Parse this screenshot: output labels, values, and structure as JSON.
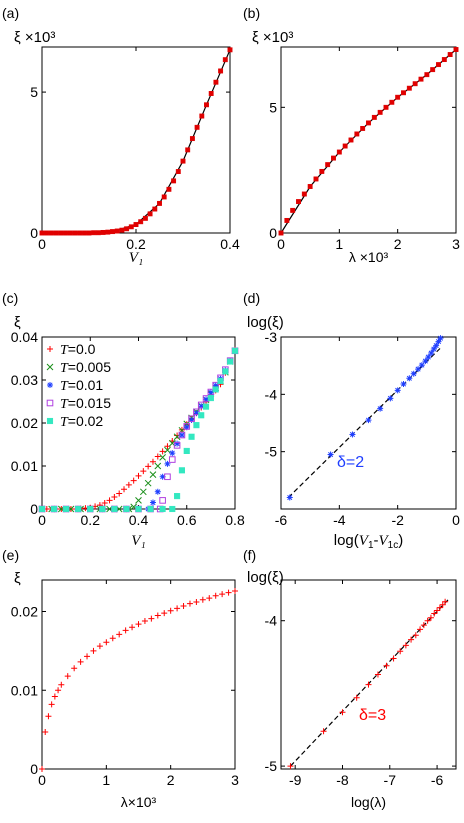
{
  "chart_data": [
    {
      "panel": "(a)",
      "type": "scatter",
      "ylabel": "ξ ×10³",
      "xlabel": "V₁",
      "xlim": [
        0,
        0.4
      ],
      "ylim": [
        0,
        6.6
      ],
      "xticks": [
        0,
        0.2,
        0.4
      ],
      "xtick_labels": [
        "0",
        "0.2",
        "0.4"
      ],
      "yticks": [
        0,
        5
      ],
      "ytick_labels": [
        "0",
        "5"
      ],
      "series": [
        {
          "marker": "square",
          "color": "#e00000",
          "x": [
            0,
            0.01,
            0.02,
            0.03,
            0.04,
            0.05,
            0.06,
            0.07,
            0.08,
            0.09,
            0.1,
            0.11,
            0.12,
            0.13,
            0.14,
            0.15,
            0.16,
            0.17,
            0.18,
            0.19,
            0.2,
            0.21,
            0.22,
            0.23,
            0.24,
            0.25,
            0.26,
            0.27,
            0.28,
            0.29,
            0.3,
            0.31,
            0.32,
            0.33,
            0.34,
            0.35,
            0.36,
            0.37,
            0.38,
            0.39,
            0.4
          ],
          "y": [
            0,
            0,
            0,
            0,
            0,
            0,
            0,
            0,
            0,
            0,
            0,
            0.01,
            0.01,
            0.02,
            0.03,
            0.05,
            0.07,
            0.1,
            0.15,
            0.22,
            0.3,
            0.4,
            0.52,
            0.68,
            0.85,
            1.05,
            1.28,
            1.55,
            1.85,
            2.18,
            2.55,
            2.95,
            3.35,
            3.75,
            4.15,
            4.55,
            4.95,
            5.35,
            5.75,
            6.15,
            6.5
          ]
        }
      ],
      "fit": {
        "style": "solid",
        "color": "#000000",
        "x": [
          0,
          0.1,
          0.15,
          0.2,
          0.25,
          0.3,
          0.35,
          0.4
        ],
        "y": [
          0,
          0,
          0.05,
          0.3,
          1.05,
          2.55,
          4.55,
          6.5
        ]
      }
    },
    {
      "panel": "(b)",
      "type": "scatter",
      "ylabel": "ξ ×10³",
      "xlabel": "λ ×10³",
      "xlim": [
        0,
        3
      ],
      "ylim": [
        0,
        7.4
      ],
      "xticks": [
        0,
        1,
        2,
        3
      ],
      "xtick_labels": [
        "0",
        "1",
        "2",
        "3"
      ],
      "yticks": [
        0,
        5
      ],
      "ytick_labels": [
        "0",
        "5"
      ],
      "series": [
        {
          "marker": "square",
          "color": "#e00000",
          "x": [
            0,
            0.1,
            0.2,
            0.3,
            0.4,
            0.5,
            0.6,
            0.7,
            0.8,
            0.9,
            1.0,
            1.1,
            1.2,
            1.3,
            1.4,
            1.5,
            1.6,
            1.7,
            1.8,
            1.9,
            2.0,
            2.1,
            2.2,
            2.3,
            2.4,
            2.5,
            2.6,
            2.7,
            2.8,
            2.9,
            3.0
          ],
          "y": [
            0,
            0.5,
            0.9,
            1.25,
            1.55,
            1.85,
            2.15,
            2.45,
            2.72,
            2.98,
            3.22,
            3.46,
            3.7,
            3.94,
            4.16,
            4.38,
            4.6,
            4.8,
            5.0,
            5.2,
            5.4,
            5.58,
            5.76,
            5.94,
            6.12,
            6.3,
            6.5,
            6.7,
            6.9,
            7.1,
            7.3
          ]
        }
      ],
      "fit": {
        "style": "solid",
        "color": "#000000",
        "x": [
          0,
          0.5,
          1.0,
          1.5,
          2.0,
          2.5,
          3.0
        ],
        "y": [
          0,
          1.85,
          3.22,
          4.38,
          5.4,
          6.3,
          7.3
        ]
      }
    },
    {
      "panel": "(c)",
      "type": "scatter",
      "ylabel": "ξ",
      "xlabel": "V₁",
      "xlim": [
        0,
        0.8
      ],
      "ylim": [
        0,
        0.04
      ],
      "xticks": [
        0,
        0.2,
        0.4,
        0.6,
        0.8
      ],
      "xtick_labels": [
        "0",
        "0.2",
        "0.4",
        "0.6",
        "0.8"
      ],
      "yticks": [
        0,
        0.01,
        0.02,
        0.03,
        0.04
      ],
      "ytick_labels": [
        "0",
        "0.01",
        "0.02",
        "0.03",
        "0.04"
      ],
      "legend": "top-left",
      "series": [
        {
          "name": "T=0.0",
          "legend_var": "T",
          "legend_val": "=0.0",
          "marker": "plus",
          "color": "#ff0000",
          "x": [
            0,
            0.02,
            0.04,
            0.06,
            0.08,
            0.1,
            0.12,
            0.14,
            0.16,
            0.18,
            0.2,
            0.22,
            0.24,
            0.26,
            0.28,
            0.3,
            0.32,
            0.34,
            0.36,
            0.38,
            0.4,
            0.42,
            0.44,
            0.46,
            0.48,
            0.5,
            0.52,
            0.54,
            0.56,
            0.58,
            0.6,
            0.62,
            0.64,
            0.66,
            0.68,
            0.7,
            0.72,
            0.74,
            0.76,
            0.78,
            0.8
          ],
          "y": [
            0,
            0,
            0,
            0,
            0,
            0,
            0,
            0,
            0.0001,
            0.0002,
            0.0003,
            0.0006,
            0.0009,
            0.0014,
            0.002,
            0.0028,
            0.0036,
            0.0046,
            0.0056,
            0.0066,
            0.0077,
            0.0088,
            0.0099,
            0.011,
            0.0122,
            0.0134,
            0.0146,
            0.0158,
            0.0171,
            0.0184,
            0.0197,
            0.021,
            0.0223,
            0.0236,
            0.0249,
            0.0262,
            0.0276,
            0.029,
            0.0317,
            0.0345,
            0.037
          ]
        },
        {
          "name": "T=0.005",
          "legend_var": "T",
          "legend_val": "=0.005",
          "marker": "x",
          "color": "#1a8f1a",
          "x": [
            0,
            0.04,
            0.08,
            0.12,
            0.16,
            0.2,
            0.24,
            0.28,
            0.32,
            0.36,
            0.38,
            0.4,
            0.42,
            0.44,
            0.46,
            0.48,
            0.5,
            0.52,
            0.54,
            0.56,
            0.58,
            0.6,
            0.62,
            0.64,
            0.66,
            0.68,
            0.7,
            0.72,
            0.74,
            0.76,
            0.78,
            0.8
          ],
          "y": [
            0,
            0,
            0,
            0,
            0,
            0,
            0,
            0,
            0,
            0,
            0.0005,
            0.002,
            0.004,
            0.006,
            0.008,
            0.01,
            0.012,
            0.0137,
            0.0153,
            0.0168,
            0.0183,
            0.0198,
            0.0212,
            0.0226,
            0.024,
            0.0254,
            0.0268,
            0.0282,
            0.0297,
            0.0318,
            0.0343,
            0.0368
          ]
        },
        {
          "name": "T=0.01",
          "legend_var": "T",
          "legend_val": "=0.01",
          "marker": "asterisk",
          "color": "#1f3fff",
          "x": [
            0,
            0.05,
            0.1,
            0.15,
            0.2,
            0.25,
            0.3,
            0.35,
            0.4,
            0.44,
            0.46,
            0.48,
            0.5,
            0.52,
            0.54,
            0.56,
            0.58,
            0.6,
            0.62,
            0.64,
            0.66,
            0.68,
            0.7,
            0.72,
            0.74,
            0.76,
            0.78,
            0.8
          ],
          "y": [
            0,
            0,
            0,
            0,
            0,
            0,
            0,
            0,
            0,
            0,
            0.0015,
            0.004,
            0.0075,
            0.0105,
            0.013,
            0.0152,
            0.0172,
            0.019,
            0.0207,
            0.0223,
            0.0239,
            0.0255,
            0.0271,
            0.0287,
            0.0303,
            0.0322,
            0.0344,
            0.0368
          ]
        },
        {
          "name": "T=0.015",
          "legend_var": "T",
          "legend_val": "=0.015",
          "marker": "square-open",
          "color": "#b040e0",
          "x": [
            0,
            0.05,
            0.1,
            0.15,
            0.2,
            0.25,
            0.3,
            0.35,
            0.4,
            0.45,
            0.49,
            0.5,
            0.52,
            0.54,
            0.56,
            0.58,
            0.6,
            0.62,
            0.64,
            0.66,
            0.68,
            0.7,
            0.72,
            0.74,
            0.76,
            0.78,
            0.8
          ],
          "y": [
            0,
            0,
            0,
            0,
            0,
            0,
            0,
            0,
            0,
            0,
            0,
            0.002,
            0.0075,
            0.0115,
            0.0148,
            0.0172,
            0.0192,
            0.021,
            0.0226,
            0.0242,
            0.0257,
            0.0272,
            0.0288,
            0.0305,
            0.0324,
            0.0345,
            0.0368
          ]
        },
        {
          "name": "T=0.02",
          "legend_var": "T",
          "legend_val": "=0.02",
          "marker": "square-filled",
          "color": "#33e8c0",
          "x": [
            0,
            0.05,
            0.1,
            0.15,
            0.2,
            0.25,
            0.3,
            0.35,
            0.4,
            0.45,
            0.5,
            0.54,
            0.56,
            0.58,
            0.6,
            0.62,
            0.64,
            0.66,
            0.68,
            0.7,
            0.72,
            0.74,
            0.76,
            0.78,
            0.8
          ],
          "y": [
            0,
            0,
            0,
            0,
            0,
            0,
            0,
            0,
            0,
            0,
            0,
            0,
            0.003,
            0.009,
            0.0135,
            0.0168,
            0.0195,
            0.0218,
            0.0238,
            0.0258,
            0.0278,
            0.0298,
            0.032,
            0.0343,
            0.0368
          ]
        }
      ]
    },
    {
      "panel": "(d)",
      "type": "scatter",
      "ylabel": "log(ξ)",
      "xlabel_parts": [
        "log(",
        "V",
        "1",
        "-",
        "V",
        "1c",
        ")"
      ],
      "xlim": [
        -6,
        0
      ],
      "ylim": [
        -6,
        -3
      ],
      "xticks": [
        -6,
        -4,
        -2,
        0
      ],
      "xtick_labels": [
        "-6",
        "-4",
        "-2",
        "0"
      ],
      "yticks": [
        -5,
        -4,
        -3
      ],
      "ytick_labels": [
        "-5",
        "-4",
        "-3"
      ],
      "annotation": "δ=2",
      "series": [
        {
          "marker": "asterisk",
          "color": "#1f3fff",
          "x": [
            -5.7,
            -4.3,
            -3.55,
            -3.0,
            -2.6,
            -2.25,
            -2.0,
            -1.8,
            -1.6,
            -1.45,
            -1.3,
            -1.17,
            -1.05,
            -0.95,
            -0.85,
            -0.76,
            -0.68,
            -0.6,
            -0.53
          ],
          "y": [
            -5.8,
            -5.05,
            -4.7,
            -4.45,
            -4.25,
            -4.07,
            -3.93,
            -3.82,
            -3.72,
            -3.64,
            -3.56,
            -3.49,
            -3.42,
            -3.35,
            -3.28,
            -3.21,
            -3.15,
            -3.08,
            -3.02
          ]
        }
      ],
      "fit": {
        "style": "dashed",
        "color": "#000000",
        "x": [
          -5.75,
          -0.55
        ],
        "y": [
          -5.8,
          -3.2
        ]
      }
    },
    {
      "panel": "(e)",
      "type": "scatter",
      "ylabel": "ξ",
      "xlabel": "λ×10³",
      "xlim": [
        0,
        3
      ],
      "ylim": [
        0,
        0.024
      ],
      "xticks": [
        0,
        1,
        2,
        3
      ],
      "xtick_labels": [
        "0",
        "1",
        "2",
        "3"
      ],
      "yticks": [
        0,
        0.01,
        0.02
      ],
      "ytick_labels": [
        "0",
        "0.01",
        "0.02"
      ],
      "series": [
        {
          "marker": "plus",
          "color": "#ff0000",
          "x": [
            0,
            0.05,
            0.1,
            0.15,
            0.2,
            0.25,
            0.3,
            0.4,
            0.5,
            0.6,
            0.7,
            0.8,
            0.9,
            1.0,
            1.1,
            1.2,
            1.3,
            1.4,
            1.5,
            1.6,
            1.7,
            1.8,
            1.9,
            2.0,
            2.1,
            2.2,
            2.3,
            2.4,
            2.5,
            2.6,
            2.7,
            2.8,
            2.9,
            3.0
          ],
          "y": [
            0,
            0.0047,
            0.0067,
            0.0082,
            0.0092,
            0.01,
            0.0107,
            0.0118,
            0.0128,
            0.0136,
            0.0143,
            0.015,
            0.0156,
            0.0161,
            0.0166,
            0.0171,
            0.0176,
            0.018,
            0.0184,
            0.0188,
            0.0191,
            0.0195,
            0.0198,
            0.0201,
            0.0204,
            0.0207,
            0.021,
            0.0212,
            0.0215,
            0.0217,
            0.022,
            0.0222,
            0.0224,
            0.0226
          ]
        }
      ]
    },
    {
      "panel": "(f)",
      "type": "scatter",
      "ylabel": "log(ξ)",
      "xlabel": "log(λ)",
      "xlim": [
        -9.3,
        -5.6
      ],
      "ylim": [
        -5.02,
        -3.72
      ],
      "xticks": [
        -9,
        -8,
        -7,
        -6
      ],
      "xtick_labels": [
        "-9",
        "-8",
        "-7",
        "-6"
      ],
      "yticks": [
        -5,
        -4
      ],
      "ytick_labels": [
        "-5",
        "-4"
      ],
      "annotation": "δ=3",
      "series": [
        {
          "marker": "plus",
          "color": "#ff0000",
          "x": [
            -9.1,
            -8.4,
            -8.0,
            -7.7,
            -7.45,
            -7.25,
            -7.07,
            -6.92,
            -6.78,
            -6.66,
            -6.55,
            -6.45,
            -6.36,
            -6.28,
            -6.2,
            -6.13,
            -6.06,
            -6.0,
            -5.94,
            -5.88,
            -5.83
          ],
          "y": [
            -5.0,
            -4.76,
            -4.63,
            -4.53,
            -4.44,
            -4.37,
            -4.31,
            -4.26,
            -4.21,
            -4.17,
            -4.13,
            -4.1,
            -4.06,
            -4.03,
            -4.0,
            -3.98,
            -3.95,
            -3.93,
            -3.91,
            -3.89,
            -3.87
          ]
        }
      ],
      "fit": {
        "style": "dashed",
        "color": "#000000",
        "x": [
          -9.1,
          -5.75
        ],
        "y": [
          -5.0,
          -3.85
        ]
      }
    }
  ]
}
